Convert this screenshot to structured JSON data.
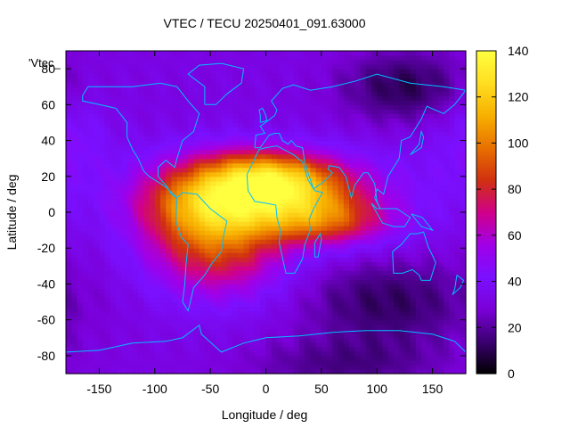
{
  "chart_data": {
    "type": "heatmap",
    "title": "VTEC / TECU 20250401_091.63000",
    "xlabel": "Longitude / deg",
    "ylabel": "Latitude / deg",
    "xlim": [
      -180,
      180
    ],
    "ylim": [
      -90,
      90
    ],
    "xticks": [
      "-150",
      "-100",
      "-50",
      "0",
      "50",
      "100",
      "150"
    ],
    "yticks": [
      "-80",
      "-60",
      "-40",
      "-20",
      "0",
      "20",
      "40",
      "60",
      "80"
    ],
    "legend_label": "'Vtec_",
    "colorbar": {
      "min": 0,
      "max": 140,
      "ticks": [
        "0",
        "20",
        "40",
        "60",
        "80",
        "100",
        "120",
        "140"
      ]
    },
    "colormap": [
      "#000000",
      "#3a0070",
      "#7a00d8",
      "#7a10ff",
      "#a000e8",
      "#d0008a",
      "#d03010",
      "#e87000",
      "#f7b000",
      "#ffdd20",
      "#ffff40"
    ],
    "features": {
      "background_level": 32,
      "equatorial_anomaly": [
        {
          "lon": -40,
          "lat": 8,
          "amp": 82,
          "slon": 50,
          "slat": 16
        },
        {
          "lon": -60,
          "lat": -18,
          "amp": 30,
          "slon": 40,
          "slat": 20
        },
        {
          "lon": 35,
          "lat": 15,
          "amp": 52,
          "slon": 40,
          "slat": 12
        },
        {
          "lon": 55,
          "lat": -5,
          "amp": 48,
          "slon": 40,
          "slat": 10
        },
        {
          "lon": -5,
          "lat": 22,
          "amp": 30,
          "slon": 35,
          "slat": 10
        },
        {
          "lon": -25,
          "lat": -25,
          "amp": 22,
          "slon": 40,
          "slat": 18
        }
      ],
      "depletions": [
        {
          "lon": 125,
          "lat": 70,
          "amp": -22,
          "slon": 40,
          "slat": 14
        },
        {
          "lon": 110,
          "lat": -50,
          "amp": -20,
          "slon": 55,
          "slat": 18
        },
        {
          "lon": 70,
          "lat": -85,
          "amp": -14,
          "slon": 60,
          "slat": 10
        }
      ],
      "enhancements": [
        {
          "lon": -175,
          "lat": 40,
          "amp": 12,
          "slon": 25,
          "slat": 20
        },
        {
          "lon": 120,
          "lat": 10,
          "amp": 8,
          "slon": 40,
          "slat": 20
        }
      ]
    }
  }
}
